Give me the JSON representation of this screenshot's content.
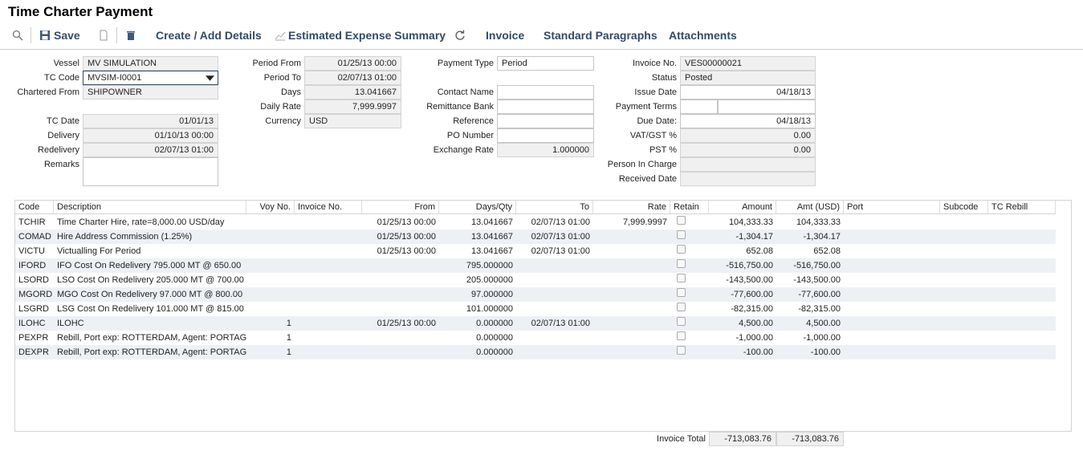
{
  "header": {
    "title": "Time Charter Payment"
  },
  "toolbar": {
    "items": [
      "Save",
      "Create / Add Details",
      "Estimated Expense Summary",
      "Invoice",
      "Standard Paragraphs",
      "Attachments"
    ]
  },
  "form": {
    "columns": [
      {
        "fields": [
          {
            "label": "Vessel",
            "value": "MV SIMULATION"
          },
          {
            "label": "TC Code",
            "value": "MVSIM-I0001"
          },
          {
            "label": "Chartered From",
            "value": "SHIPOWNER"
          },
          {
            "label": "TC Date",
            "value": "01/01/13"
          },
          {
            "label": "Delivery",
            "value": "01/10/13 00:00"
          },
          {
            "label": "Redelivery",
            "value": "02/07/13 01:00"
          },
          {
            "label": "Remarks"
          }
        ]
      },
      {
        "fields": [
          {
            "label": "Period From",
            "value": "01/25/13 00:00"
          },
          {
            "label": "Period To",
            "value": "02/07/13 01:00"
          },
          {
            "label": "Days",
            "value": "13.041667"
          },
          {
            "label": "Daily Rate",
            "value": "7,999.9997"
          },
          {
            "label": "Currency",
            "value": "USD"
          }
        ]
      },
      {
        "fields": [
          {
            "label": "Payment Type",
            "value": "Period"
          },
          {
            "label": "Contact Name"
          },
          {
            "label": "Remittance Bank"
          },
          {
            "label": "Reference"
          },
          {
            "label": "PO Number"
          },
          {
            "label": "Exchange Rate",
            "value": "1.000000"
          }
        ]
      },
      {
        "fields": [
          {
            "label": "Invoice No.",
            "value": "VES00000021"
          },
          {
            "label": "Status",
            "value": "Posted"
          },
          {
            "label": "Issue Date",
            "value": "04/18/13"
          },
          {
            "label": "Payment Terms"
          },
          {
            "label": "Due Date:",
            "value": "04/18/13"
          },
          {
            "label": "VAT/GST %",
            "value": "0.00"
          },
          {
            "label": "PST %",
            "value": "0.00"
          },
          {
            "label": "Person In Charge"
          },
          {
            "label": "Received Date"
          }
        ]
      }
    ]
  },
  "table": {
    "headers": [
      "Code",
      "Description",
      "Voy No.",
      "Invoice No.",
      "From",
      "Days/Qty",
      "To",
      "Rate",
      "Retain",
      "Amount",
      "Amt (USD)",
      "Port",
      "Subcode",
      "TC Rebill"
    ],
    "rows": [
      [
        "TCHIR",
        "Time Charter Hire, rate=8,000.00 USD/day",
        null,
        null,
        "01/25/13 00:00",
        "13.041667",
        "02/07/13 01:00",
        "7,999.9997",
        null,
        "104,333.33",
        "104,333.33",
        null,
        null,
        null
      ],
      [
        "COMAD",
        "Hire Address Commission (1.25%)",
        null,
        null,
        "01/25/13 00:00",
        "13.041667",
        "02/07/13 01:00",
        null,
        null,
        "-1,304.17",
        "-1,304.17",
        null,
        null,
        null
      ],
      [
        "VICTU",
        "Victualling For Period",
        null,
        null,
        "01/25/13 00:00",
        "13.041667",
        "02/07/13 01:00",
        null,
        null,
        "652.08",
        "652.08",
        null,
        null,
        null
      ],
      [
        "IFORD",
        "IFO Cost On Redelivery 795.000 MT @ 650.00",
        null,
        null,
        null,
        "795.000000",
        null,
        null,
        null,
        "-516,750.00",
        "-516,750.00",
        null,
        null,
        null
      ],
      [
        "LSORD",
        "LSO Cost On Redelivery 205.000 MT @ 700.00",
        null,
        null,
        null,
        "205.000000",
        null,
        null,
        null,
        "-143,500.00",
        "-143,500.00",
        null,
        null,
        null
      ],
      [
        "MGORD",
        "MGO Cost On Redelivery 97.000 MT @ 800.00",
        null,
        null,
        null,
        "97.000000",
        null,
        null,
        null,
        "-77,600.00",
        "-77,600.00",
        null,
        null,
        null
      ],
      [
        "LSGRD",
        "LSG Cost On Redelivery 101.000 MT @ 815.00",
        null,
        null,
        null,
        "101.000000",
        null,
        null,
        null,
        "-82,315.00",
        "-82,315.00",
        null,
        null,
        null
      ],
      [
        "ILOHC",
        "ILOHC",
        "1",
        null,
        "01/25/13 00:00",
        "0.000000",
        "02/07/13 01:00",
        null,
        null,
        "4,500.00",
        "4,500.00",
        null,
        null,
        null
      ],
      [
        "PEXPR",
        "Rebill, Port exp: ROTTERDAM, Agent: PORTAG",
        "1",
        null,
        null,
        "0.000000",
        null,
        null,
        null,
        "-1,000.00",
        "-1,000.00",
        null,
        null,
        null
      ],
      [
        "DEXPR",
        "Rebill, Port exp: ROTTERDAM, Agent: PORTAG",
        "1",
        null,
        null,
        "0.000000",
        null,
        null,
        null,
        "-100.00",
        "-100.00",
        null,
        null,
        null
      ]
    ],
    "total": {
      "label": "Invoice Total",
      "amount": "-713,083.76",
      "amt_usd": "-713,083.76"
    }
  }
}
